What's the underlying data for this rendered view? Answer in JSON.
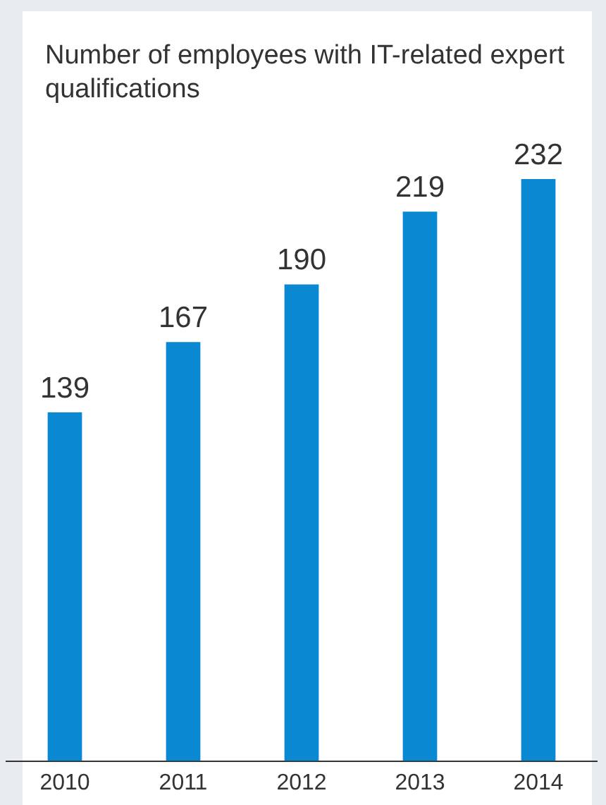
{
  "chart_data": {
    "type": "bar",
    "title": "Number of employees with IT-related expert qualifications",
    "categories": [
      "2010",
      "2011",
      "2012",
      "2013",
      "2014"
    ],
    "values": [
      139,
      167,
      190,
      219,
      232
    ],
    "color": "#0a88d2",
    "data_labels": true,
    "grid": false,
    "legend": false
  }
}
